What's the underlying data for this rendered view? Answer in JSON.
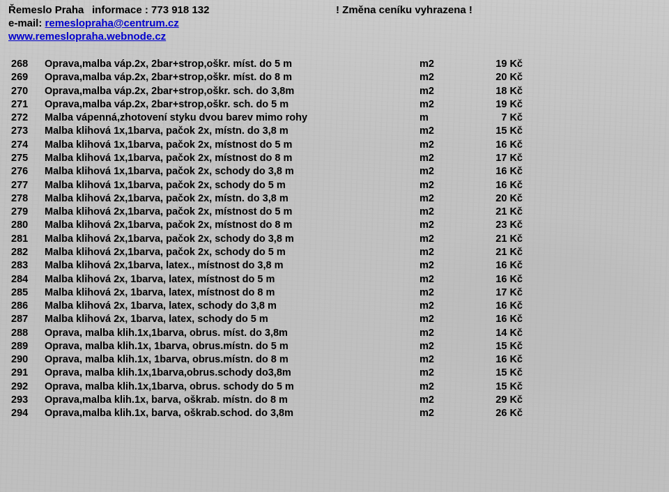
{
  "header": {
    "company": "Řemeslo Praha",
    "info_label": "informace : 773 918 132",
    "notice": "! Změna ceníku vyhrazena !",
    "email_label": "e-mail: ",
    "email_link": "remeslopraha@centrum.cz",
    "web_link": "www.remeslopraha.webnode.cz"
  },
  "rows": [
    {
      "n": "268",
      "d": "Oprava,malba váp.2x, 2bar+strop,oškr. míst. do 5 m",
      "u": "m2",
      "p": "19 Kč"
    },
    {
      "n": "269",
      "d": "Oprava,malba váp.2x, 2bar+strop,oškr. míst. do 8 m",
      "u": "m2",
      "p": "20 Kč"
    },
    {
      "n": "270",
      "d": "Oprava,malba váp.2x, 2bar+strop,oškr. sch. do 3,8m",
      "u": "m2",
      "p": "18 Kč"
    },
    {
      "n": "271",
      "d": "Oprava,malba váp.2x, 2bar+strop,oškr. sch. do 5 m",
      "u": "m2",
      "p": "19 Kč"
    },
    {
      "n": "272",
      "d": "Malba vápenná,zhotovení styku dvou barev mimo rohy",
      "u": "m",
      "p": "7 Kč"
    },
    {
      "n": "273",
      "d": "Malba klihová 1x,1barva, pačok 2x, místn. do 3,8 m",
      "u": "m2",
      "p": "15 Kč"
    },
    {
      "n": "274",
      "d": "Malba klihová 1x,1barva, pačok 2x, místnost do 5 m",
      "u": "m2",
      "p": "16 Kč"
    },
    {
      "n": "275",
      "d": "Malba klihová 1x,1barva, pačok 2x, místnost do 8 m",
      "u": "m2",
      "p": "17 Kč"
    },
    {
      "n": "276",
      "d": "Malba klihová 1x,1barva, pačok 2x, schody do 3,8 m",
      "u": "m2",
      "p": "16 Kč"
    },
    {
      "n": "277",
      "d": "Malba klihová 1x,1barva, pačok 2x, schody do 5 m",
      "u": "m2",
      "p": "16 Kč"
    },
    {
      "n": "278",
      "d": "Malba klihová 2x,1barva, pačok 2x, místn. do 3,8 m",
      "u": "m2",
      "p": "20 Kč"
    },
    {
      "n": "279",
      "d": "Malba klihová 2x,1barva, pačok 2x, místnost do 5 m",
      "u": "m2",
      "p": "21 Kč"
    },
    {
      "n": "280",
      "d": "Malba klihová 2x,1barva, pačok 2x, místnost do 8 m",
      "u": "m2",
      "p": "23 Kč"
    },
    {
      "n": "281",
      "d": "Malba klihová 2x,1barva, pačok 2x, schody do 3,8 m",
      "u": "m2",
      "p": "21 Kč"
    },
    {
      "n": "282",
      "d": "Malba klihová 2x,1barva, pačok 2x, schody do 5 m",
      "u": "m2",
      "p": "21 Kč"
    },
    {
      "n": "283",
      "d": "Malba klihová 2x,1barva, latex., místnost do 3,8 m",
      "u": "m2",
      "p": "16 Kč"
    },
    {
      "n": "284",
      "d": "Malba klihová 2x, 1barva, latex, místnost do 5 m",
      "u": "m2",
      "p": "16 Kč"
    },
    {
      "n": "285",
      "d": "Malba klihová 2x, 1barva, latex, místnost do 8 m",
      "u": "m2",
      "p": "17 Kč"
    },
    {
      "n": "286",
      "d": "Malba klihová 2x, 1barva, latex, schody do 3,8 m",
      "u": "m2",
      "p": "16 Kč"
    },
    {
      "n": "287",
      "d": "Malba klihová 2x, 1barva, latex, schody do 5 m",
      "u": "m2",
      "p": "16 Kč"
    },
    {
      "n": "288",
      "d": "Oprava, malba klih.1x,1barva, obrus. míst. do 3,8m",
      "u": "m2",
      "p": "14 Kč"
    },
    {
      "n": "289",
      "d": "Oprava, malba klih.1x, 1barva, obrus.místn. do 5 m",
      "u": "m2",
      "p": "15 Kč"
    },
    {
      "n": "290",
      "d": "Oprava, malba klih.1x, 1barva, obrus.místn. do 8 m",
      "u": "m2",
      "p": "16 Kč"
    },
    {
      "n": "291",
      "d": "Oprava, malba klih.1x,1barva,obrus.schody do3,8m",
      "u": "m2",
      "p": "15 Kč"
    },
    {
      "n": "292",
      "d": "Oprava, malba klih.1x,1barva, obrus. schody do 5 m",
      "u": "m2",
      "p": "15 Kč"
    },
    {
      "n": "293",
      "d": "Oprava,malba klih.1x, barva, oškrab. místn. do 8 m",
      "u": "m2",
      "p": "29 Kč"
    },
    {
      "n": "294",
      "d": "Oprava,malba klih.1x, barva, oškrab.schod. do 3,8m",
      "u": "m2",
      "p": "26 Kč"
    }
  ]
}
